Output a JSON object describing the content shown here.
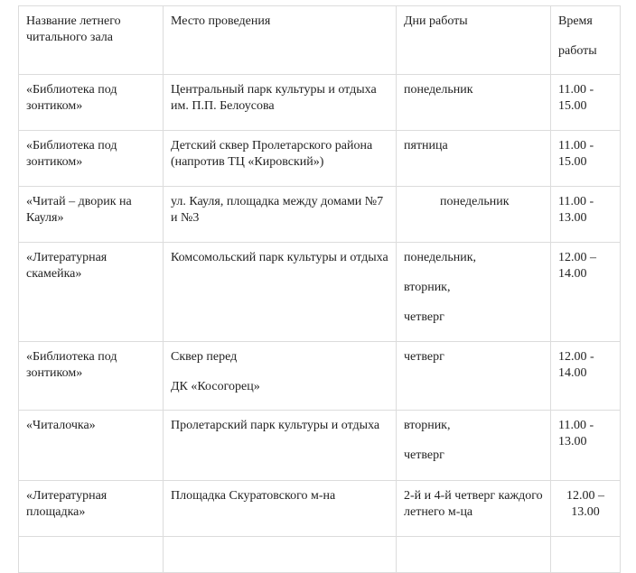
{
  "headers": [
    "Название летнего читального зала",
    "Место проведения",
    "Дни работы",
    [
      "Время",
      "работы"
    ]
  ],
  "rows": [
    {
      "name": "«Библиотека под зонтиком»",
      "place": [
        "Центральный парк культуры и отдыха им. П.П. Белоусова"
      ],
      "days": [
        "понедельник"
      ],
      "time": "11.00 - 15.00"
    },
    {
      "name": "«Библиотека под зонтиком»",
      "place": [
        "Детский сквер Пролетарского района (напротив ТЦ «Кировский»)"
      ],
      "days": [
        "пятница"
      ],
      "time": "11.00 - 15.00"
    },
    {
      "name": "«Читай – дворик на Кауля»",
      "place": [
        "ул. Кауля, площадка между домами №7 и №3"
      ],
      "days": [
        "понедельник"
      ],
      "time": "11.00 - 13.00"
    },
    {
      "name": "«Литературная скамейка»",
      "place": [
        "Комсомольский парк культуры и отдыха"
      ],
      "days": [
        "понедельник,",
        "вторник,",
        "четверг"
      ],
      "time": "12.00 – 14.00"
    },
    {
      "name": "«Библиотека под зонтиком»",
      "place": [
        "Сквер перед",
        "ДК «Косогорец»"
      ],
      "days": [
        "четверг"
      ],
      "time": "12.00 - 14.00"
    },
    {
      "name": "«Читалочка»",
      "place": [
        "Пролетарский парк культуры и отдыха"
      ],
      "days": [
        "вторник,",
        "четверг"
      ],
      "time": "11.00 - 13.00"
    },
    {
      "name": "«Литературная площадка»",
      "place": [
        "Площадка Скуратовского м-на"
      ],
      "days": [
        "2-й и 4-й четверг каждого летнего м-ца"
      ],
      "time": "12.00 – 13.00"
    }
  ]
}
